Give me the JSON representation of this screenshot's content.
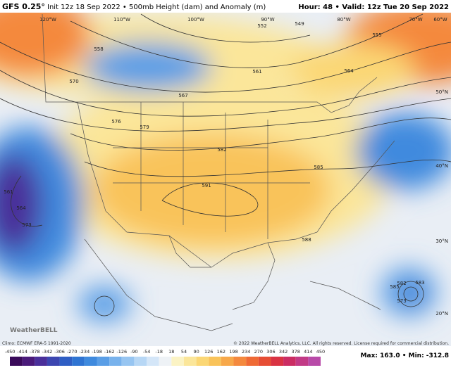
{
  "header": {
    "title": "GFS 0.25°",
    "subtitle": "Init 12z 18 Sep 2022 • 500mb Height (dam) and Anomaly (m)",
    "valid": "Hour: 48 • Valid: 12z Tue 20 Sep 2022"
  },
  "map": {
    "lon_labels": [
      "120°W",
      "110°W",
      "100°W",
      "90°W",
      "80°W",
      "70°W",
      "60°W"
    ],
    "lat_labels": [
      "50°N",
      "40°N",
      "30°N",
      "20°N"
    ],
    "contour_labels": [
      "576",
      "579",
      "582",
      "585",
      "588",
      "591",
      "567",
      "561",
      "558",
      "552",
      "549",
      "555",
      "564",
      "573",
      "570",
      "564",
      "561",
      "582",
      "585",
      "583",
      "573"
    ],
    "logo": "WeatherBELL"
  },
  "footer": {
    "climo": "Climo: ECMWF ERA-5 1991-2020",
    "credit": "© 2022 WeatherBELL Analytics, LLC. All rights reserved. License required for commercial distribution.",
    "stats": "Max: 163.0 • Min: -312.8",
    "scale_labels": [
      "-450",
      "-414",
      "-378",
      "-342",
      "-306",
      "-270",
      "-234",
      "-198",
      "-162",
      "-126",
      "-90",
      "-54",
      "-18",
      "18",
      "54",
      "90",
      "126",
      "162",
      "198",
      "234",
      "270",
      "306",
      "342",
      "378",
      "414",
      "450"
    ],
    "scale_colors": [
      "#3a0a5a",
      "#4a1a7a",
      "#4a2f9a",
      "#3c46b0",
      "#2f5ec4",
      "#2f74d2",
      "#3f8ade",
      "#5a9ee6",
      "#78b2ec",
      "#97c5f1",
      "#b7d7f5",
      "#d4e6f8",
      "#eef2f6",
      "#fbf3c4",
      "#fbe69a",
      "#fbd775",
      "#f9c35a",
      "#f7a84a",
      "#f4893e",
      "#ef6a35",
      "#e64d34",
      "#d93343",
      "#cb2d63",
      "#c23a86",
      "#b84aa8"
    ]
  }
}
